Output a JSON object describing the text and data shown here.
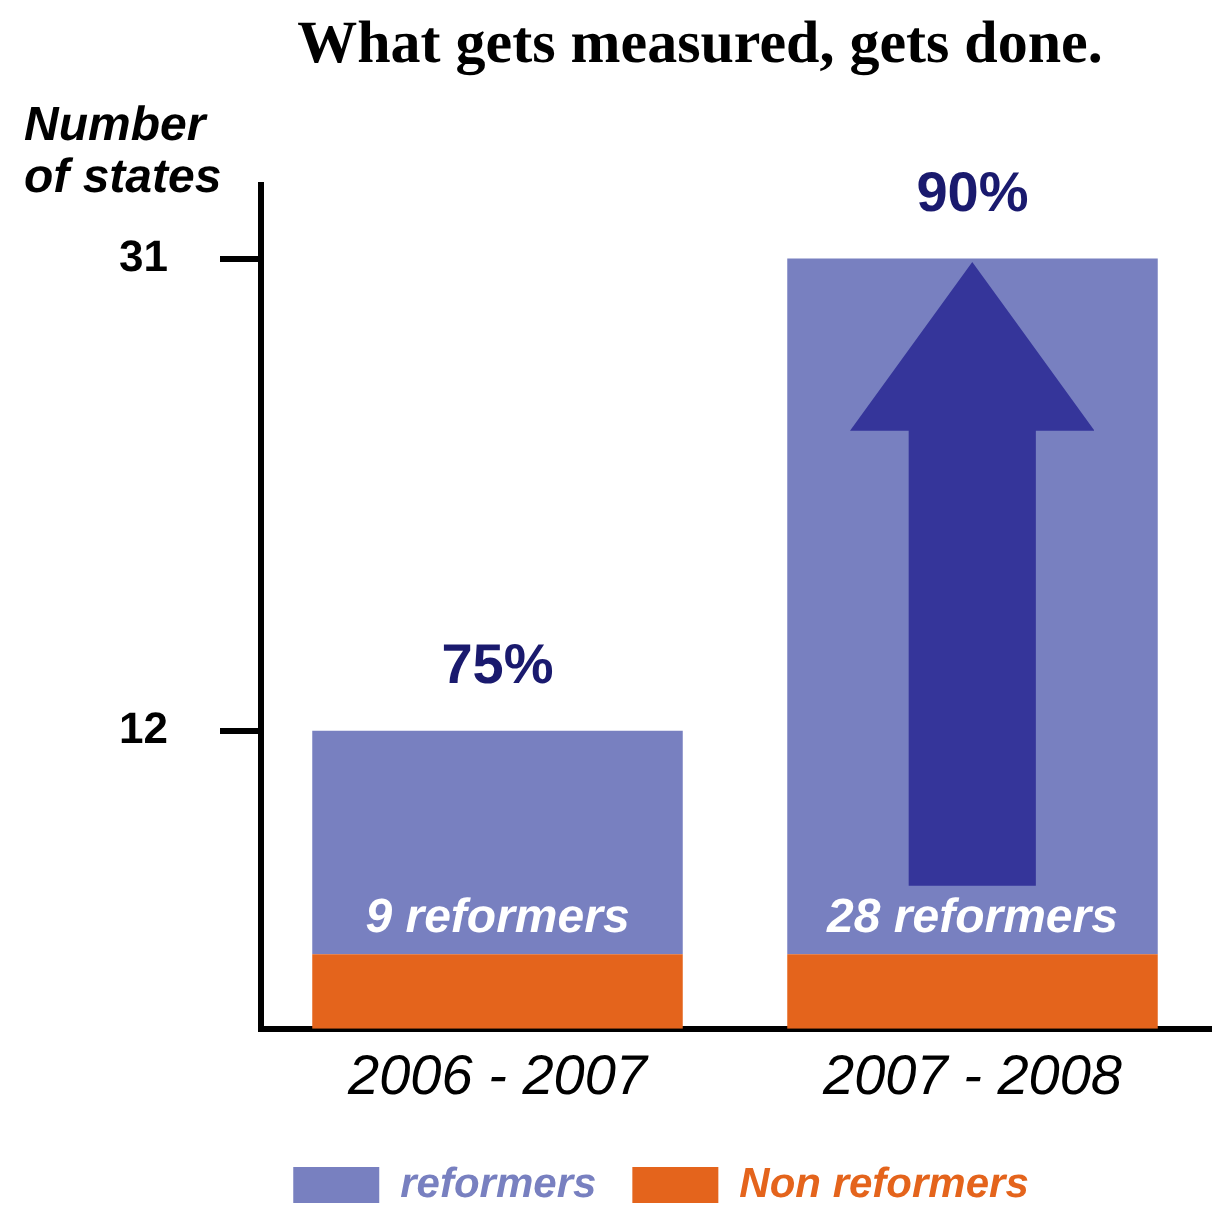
{
  "chart_data": {
    "type": "bar",
    "title": "What gets measured, gets done.",
    "ylabel": "Number of states",
    "categories": [
      "2006 - 2007",
      "2007 - 2008"
    ],
    "stacked": true,
    "series": [
      {
        "name": "Non reformers",
        "color": "#e4641c",
        "values": [
          3,
          3
        ]
      },
      {
        "name": "reformers",
        "color": "#7880c0",
        "values": [
          9,
          28
        ],
        "value_labels": [
          "9 reformers",
          "28 reformers"
        ]
      }
    ],
    "ylim": [
      0,
      34
    ],
    "yticks": [
      12,
      31
    ],
    "legend": "bottom",
    "annotations": [
      "75%",
      "90%"
    ]
  }
}
